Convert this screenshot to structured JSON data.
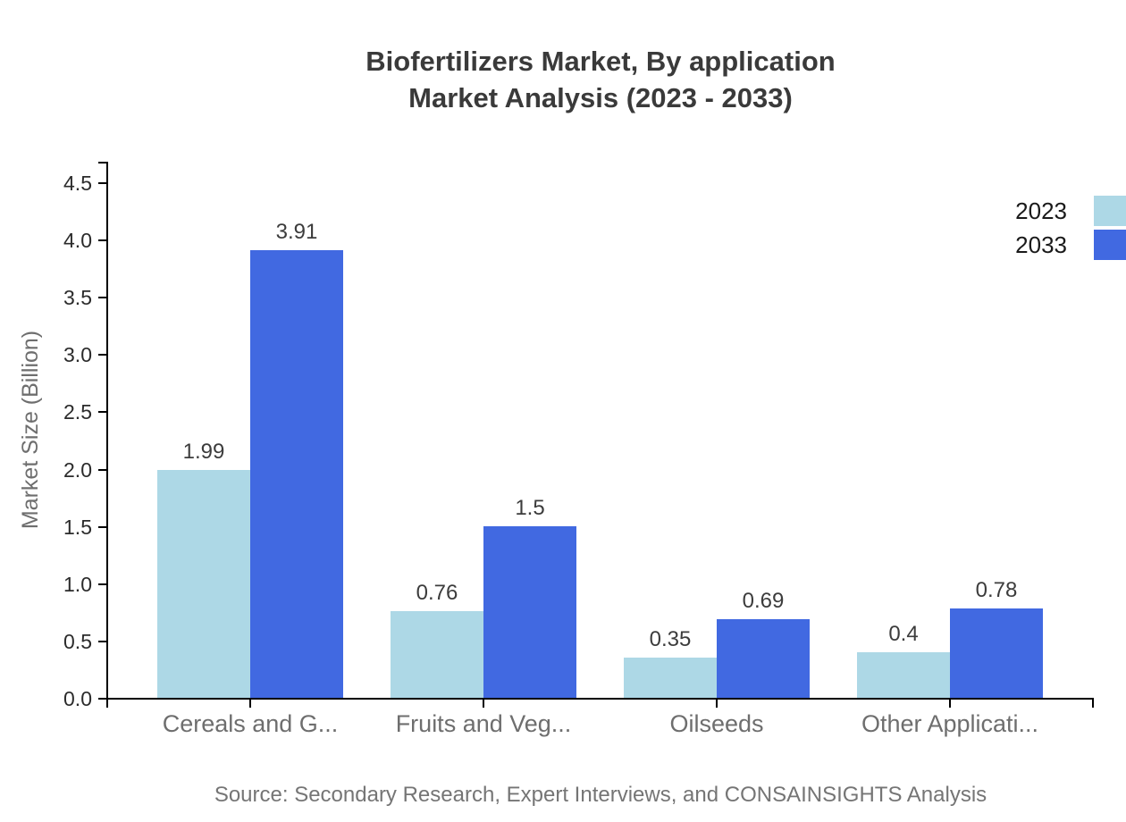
{
  "title": {
    "line1": "Biofertilizers Market, By application",
    "line2": "Market Analysis (2023 - 2033)"
  },
  "source_note": "Source: Secondary Research, Expert Interviews, and CONSAINSIGHTS Analysis",
  "colors": {
    "series_2023": "#ADD8E6",
    "series_2033": "#4169E1",
    "axis": "#000000",
    "title_text": "#3a3a3a",
    "value_label_text": "#3c3c3c",
    "ytick_label_text": "#2b2b2b",
    "category_label_text": "#6e6e6e",
    "muted_text": "#757575",
    "legend_text": "#1a1a1a",
    "background": "#ffffff"
  },
  "chart_data": {
    "type": "bar",
    "title": "Biofertilizers Market, By application Market Analysis (2023 - 2033)",
    "categories": [
      "Cereals and G...",
      "Fruits and Veg...",
      "Oilseeds",
      "Other Applicati..."
    ],
    "series": [
      {
        "name": "2023",
        "color": "#ADD8E6",
        "values": [
          1.99,
          0.76,
          0.35,
          0.4
        ]
      },
      {
        "name": "2033",
        "color": "#4169E1",
        "values": [
          3.91,
          1.5,
          0.69,
          0.78
        ]
      }
    ],
    "xlabel": "",
    "ylabel": "Market Size (Billion)",
    "ylim": [
      0,
      4.5
    ],
    "yticks": [
      "0.0",
      "0.5",
      "1.0",
      "1.5",
      "2.0",
      "2.5",
      "3.0",
      "3.5",
      "4.0",
      "4.5"
    ],
    "bar_value_labels_shown": true,
    "grid": false,
    "legend": {
      "position": "top-right",
      "entries": [
        "2023",
        "2033"
      ]
    }
  }
}
